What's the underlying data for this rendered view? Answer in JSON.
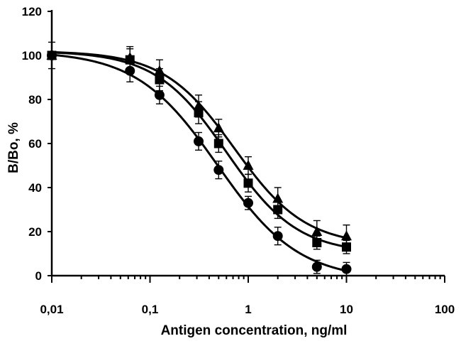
{
  "chart_data": {
    "type": "scatter",
    "title": "",
    "xlabel": "Antigen concentration, ng/ml",
    "ylabel": "B/Bo, %",
    "xscale": "log",
    "xlim": [
      0.01,
      100
    ],
    "ylim": [
      0,
      120
    ],
    "x_tick_labels": [
      "0,01",
      "0,1",
      "1",
      "10",
      "100"
    ],
    "y_tick_labels": [
      "0",
      "20",
      "40",
      "60",
      "80",
      "100",
      "120"
    ],
    "grid": false,
    "legend": "none",
    "series": [
      {
        "marker": "circle",
        "x": [
          0.01,
          0.0625,
          0.125,
          0.3125,
          0.5,
          1,
          2,
          5,
          10
        ],
        "y": [
          100,
          93,
          82,
          61,
          48,
          33,
          18,
          4,
          3
        ],
        "err": [
          0,
          5,
          4,
          4,
          4,
          3,
          4,
          3,
          3
        ]
      },
      {
        "marker": "square",
        "x": [
          0.01,
          0.0625,
          0.125,
          0.3125,
          0.5,
          1,
          2,
          5,
          10
        ],
        "y": [
          100,
          98,
          89,
          74,
          60,
          42,
          30,
          15,
          13
        ],
        "err": [
          0,
          5,
          5,
          5,
          4,
          4,
          4,
          3,
          3
        ]
      },
      {
        "marker": "triangle",
        "x": [
          0.01,
          0.0625,
          0.125,
          0.3125,
          0.5,
          1,
          2,
          5,
          10
        ],
        "y": [
          100,
          99,
          93,
          77,
          67,
          50,
          35,
          20,
          18
        ],
        "err": [
          6,
          5,
          5,
          5,
          4,
          4,
          5,
          5,
          5
        ]
      }
    ]
  }
}
